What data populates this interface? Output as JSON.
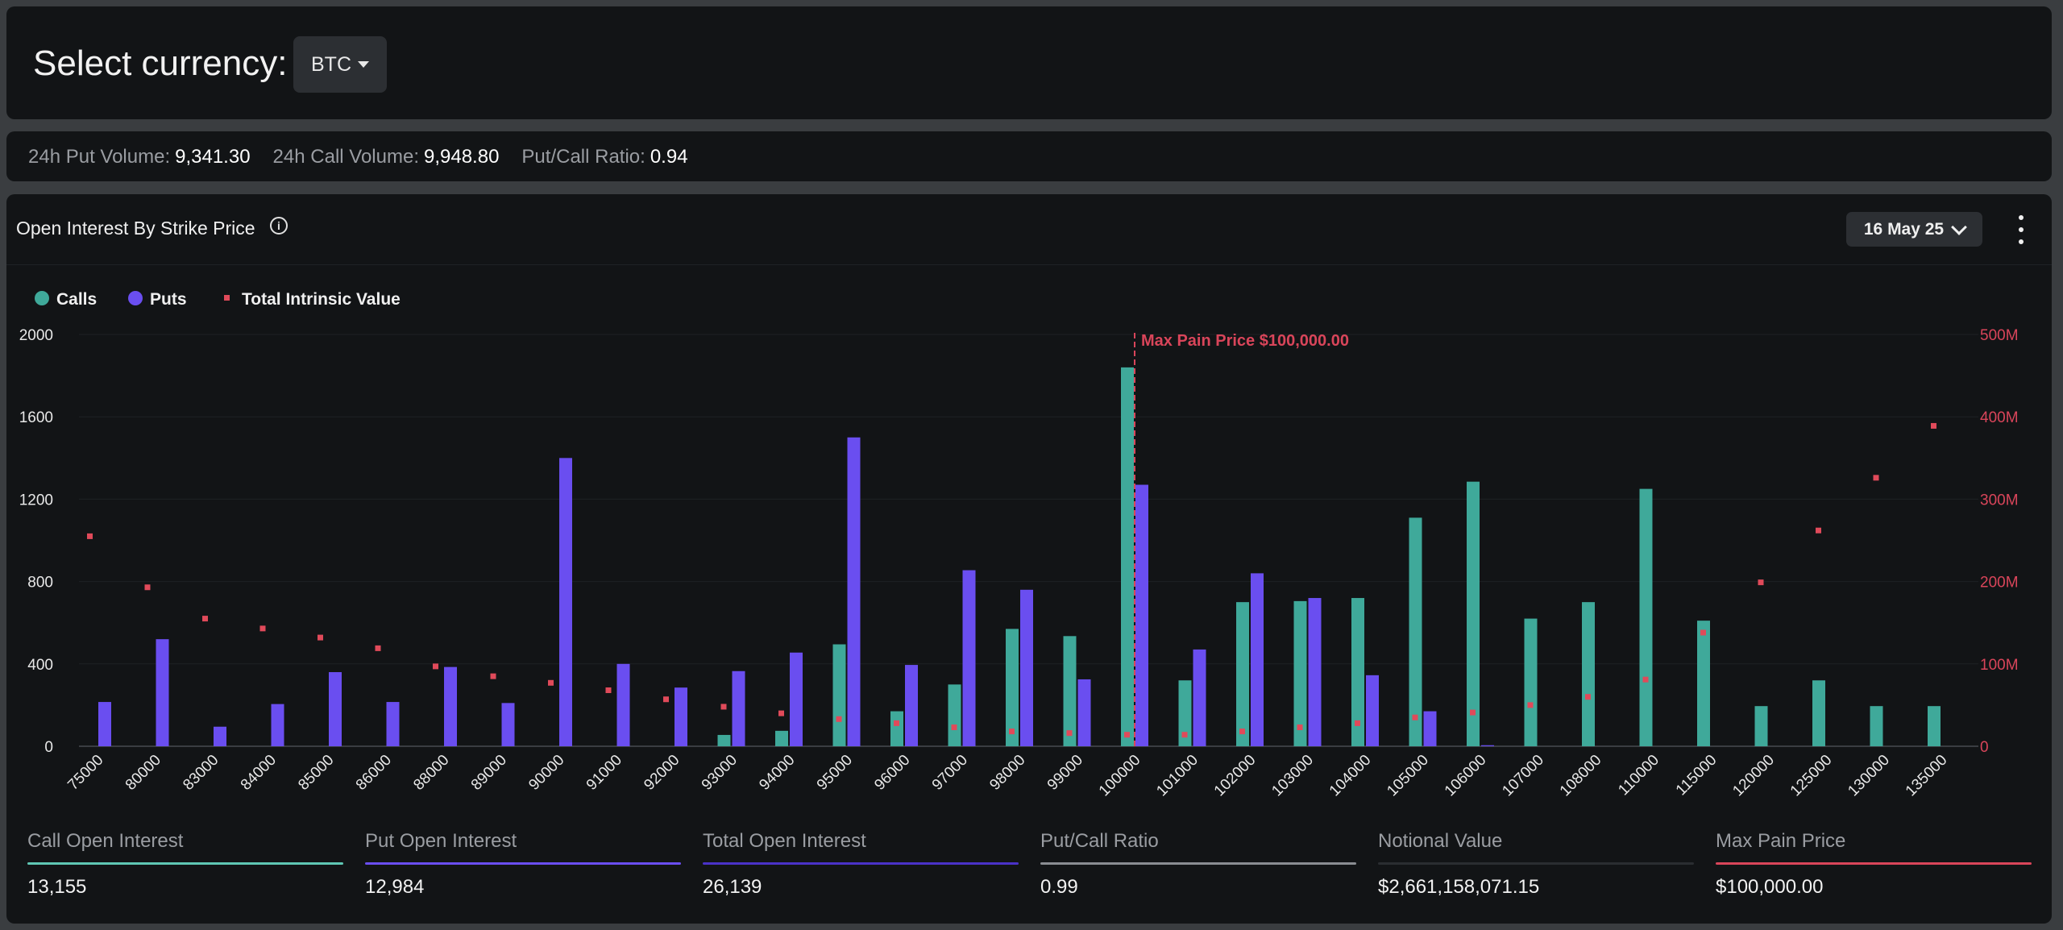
{
  "header": {
    "select_label": "Select currency:",
    "currency": "BTC"
  },
  "stats": [
    {
      "label": "24h Put Volume:",
      "value": "9,341.30"
    },
    {
      "label": "24h Call Volume:",
      "value": "9,948.80"
    },
    {
      "label": "Put/Call Ratio:",
      "value": "0.94"
    }
  ],
  "chart_panel": {
    "title": "Open Interest By Strike Price",
    "expiry": "16 May 25"
  },
  "colors": {
    "calls": "#3fa99a",
    "puts": "#6a4ef0",
    "intrinsic": "#e04a5a",
    "max_pain": "#d9455a",
    "ratio_line": "#8a8d92",
    "notional_line": "#2a2d31"
  },
  "chart_data": {
    "type": "bar",
    "legend": [
      "Calls",
      "Puts",
      "Total Intrinsic Value"
    ],
    "categories": [
      "75000",
      "80000",
      "83000",
      "84000",
      "85000",
      "86000",
      "88000",
      "89000",
      "90000",
      "91000",
      "92000",
      "93000",
      "94000",
      "95000",
      "96000",
      "97000",
      "98000",
      "99000",
      "100000",
      "101000",
      "102000",
      "103000",
      "104000",
      "105000",
      "106000",
      "107000",
      "108000",
      "110000",
      "115000",
      "120000",
      "125000",
      "130000",
      "135000"
    ],
    "series": [
      {
        "name": "Calls",
        "axis": "left",
        "values": [
          0,
          0,
          0,
          0,
          0,
          0,
          0,
          0,
          0,
          0,
          0,
          55,
          75,
          495,
          170,
          300,
          570,
          535,
          1840,
          320,
          700,
          705,
          720,
          1110,
          1285,
          620,
          700,
          1250,
          610,
          195,
          320,
          195,
          195
        ]
      },
      {
        "name": "Puts",
        "axis": "left",
        "values": [
          215,
          520,
          95,
          205,
          360,
          215,
          385,
          210,
          1400,
          400,
          285,
          365,
          455,
          1500,
          395,
          855,
          760,
          325,
          1270,
          470,
          840,
          720,
          345,
          170,
          5,
          0,
          0,
          0,
          0,
          0,
          0,
          0,
          0
        ]
      },
      {
        "name": "Total Intrinsic Value",
        "axis": "right",
        "values": [
          255,
          193,
          155,
          143,
          132,
          119,
          97,
          85,
          77,
          68,
          57,
          48,
          40,
          33,
          28,
          23,
          18,
          16,
          14,
          14,
          18,
          23,
          28,
          35,
          41,
          50,
          60,
          81,
          138,
          199,
          262,
          326,
          389
        ]
      }
    ],
    "yticks": [
      "0",
      "400",
      "800",
      "1200",
      "1600",
      "2000"
    ],
    "y2ticks": [
      "0",
      "100M",
      "200M",
      "300M",
      "400M",
      "500M"
    ],
    "ylim": [
      0,
      2000
    ],
    "y2lim": [
      0,
      500
    ],
    "max_pain_category": "100000",
    "max_pain_label": "Max Pain Price $100,000.00",
    "grid": true,
    "legend_position": "top-left"
  },
  "metrics": [
    {
      "label": "Call Open Interest",
      "value": "13,155",
      "color": "#5fc7b4"
    },
    {
      "label": "Put Open Interest",
      "value": "12,984",
      "color": "#6a4ef0"
    },
    {
      "label": "Total Open Interest",
      "value": "26,139",
      "color": "#4a32c8"
    },
    {
      "label": "Put/Call Ratio",
      "value": "0.99",
      "color": "#8a8d92"
    },
    {
      "label": "Notional Value",
      "value": "$2,661,158,071.15",
      "color": "#2a2d31"
    },
    {
      "label": "Max Pain Price",
      "value": "$100,000.00",
      "color": "#d9455a"
    }
  ]
}
